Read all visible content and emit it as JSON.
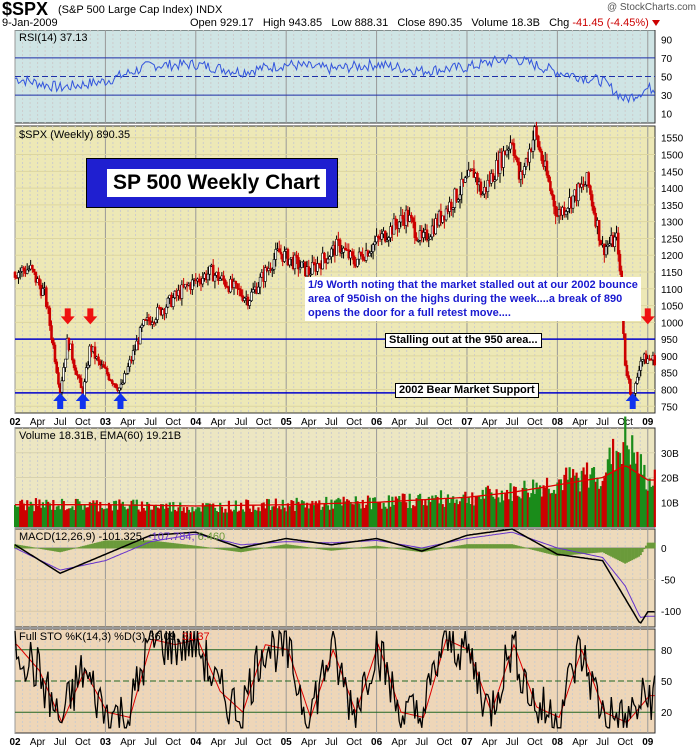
{
  "header": {
    "symbol": "$SPX",
    "name": "(S&P 500 Large Cap Index)",
    "exchange": "INDX",
    "watermark": "@ StockCharts.com",
    "date": "9-Jan-2009",
    "open_label": "Open",
    "open": "929.17",
    "high_label": "High",
    "high": "943.85",
    "low_label": "Low",
    "low": "888.31",
    "close_label": "Close",
    "close": "890.35",
    "volume_label": "Volume",
    "volume": "18.3B",
    "chg_label": "Chg",
    "chg": "-41.45 (-4.45%)"
  },
  "annotations": {
    "title_box": "SP 500 Weekly Chart",
    "note": "1/9  Worth noting that the market stalled out at our 2002 bounce area of 950ish on the highs during the week....a break of 890 opens the door for a full retest move....",
    "stall_label": "Stalling out at the 950 area...",
    "support_label": "2002 Bear Market Support"
  },
  "colors": {
    "rsi_bg": "#cfe4e4",
    "price_bg": "#ede8b6",
    "panel_bg": "#ece6c2",
    "macd_bg": "#eddabb",
    "sto_bg": "#eed6b8",
    "blue_line": "#0000cc",
    "up": "#1a8c1a",
    "down": "#cc0000",
    "arrow_red": "#ee1111",
    "arrow_blue": "#1133ee"
  },
  "chart_data": [
    {
      "type": "line",
      "panel": "rsi",
      "legend": "RSI(14) 37.13",
      "y_ticks": [
        10,
        30,
        50,
        70,
        90
      ],
      "ylim": [
        0,
        100
      ],
      "x_months": [
        "2002-01",
        "2002-07",
        "2003-01",
        "2003-07",
        "2004-01",
        "2004-07",
        "2005-01",
        "2005-07",
        "2006-01",
        "2006-07",
        "2007-01",
        "2007-07",
        "2008-01",
        "2008-07",
        "2008-10",
        "2009-01"
      ],
      "values": [
        48,
        38,
        45,
        62,
        63,
        55,
        63,
        58,
        63,
        56,
        60,
        70,
        55,
        45,
        25,
        37
      ]
    },
    {
      "type": "candlestick",
      "panel": "price",
      "legend": "$SPX (Weekly) 890.35",
      "y_ticks": [
        750,
        800,
        850,
        900,
        950,
        1000,
        1050,
        1100,
        1150,
        1200,
        1250,
        1300,
        1350,
        1400,
        1450,
        1500,
        1550
      ],
      "ylim": [
        730,
        1585
      ],
      "x_tick_labels": [
        "02",
        "Apr",
        "Jul",
        "Oct",
        "03",
        "Apr",
        "Jul",
        "Oct",
        "04",
        "Apr",
        "Jul",
        "Oct",
        "05",
        "Apr",
        "Jul",
        "Oct",
        "06",
        "Apr",
        "Jul",
        "Oct",
        "07",
        "Apr",
        "Jul",
        "Oct",
        "08",
        "Apr",
        "Jul",
        "Oct",
        "09"
      ],
      "horizontal_lines": [
        950,
        790
      ],
      "anchor_points": [
        [
          "2002-01",
          1150
        ],
        [
          "2002-03",
          1160
        ],
        [
          "2002-05",
          1080
        ],
        [
          "2002-07",
          800
        ],
        [
          "2002-08",
          950
        ],
        [
          "2002-10",
          780
        ],
        [
          "2002-11",
          930
        ],
        [
          "2002-12",
          880
        ],
        [
          "2003-03",
          800
        ],
        [
          "2003-06",
          990
        ],
        [
          "2003-12",
          1110
        ],
        [
          "2004-03",
          1150
        ],
        [
          "2004-08",
          1070
        ],
        [
          "2004-12",
          1210
        ],
        [
          "2005-04",
          1150
        ],
        [
          "2005-08",
          1230
        ],
        [
          "2005-10",
          1180
        ],
        [
          "2006-05",
          1320
        ],
        [
          "2006-07",
          1240
        ],
        [
          "2007-02",
          1450
        ],
        [
          "2007-03",
          1380
        ],
        [
          "2007-07",
          1550
        ],
        [
          "2007-08",
          1420
        ],
        [
          "2007-10",
          1565
        ],
        [
          "2008-01",
          1320
        ],
        [
          "2008-05",
          1420
        ],
        [
          "2008-07",
          1220
        ],
        [
          "2008-09",
          1250
        ],
        [
          "2008-10",
          880
        ],
        [
          "2008-11",
          760
        ],
        [
          "2008-12",
          890
        ],
        [
          "2009-01",
          890
        ]
      ],
      "arrows": [
        {
          "dir": "down",
          "color": "red",
          "date": "2002-08",
          "price": 1000
        },
        {
          "dir": "down",
          "color": "red",
          "date": "2002-11",
          "price": 1000
        },
        {
          "dir": "up",
          "color": "blue",
          "date": "2002-07",
          "price": 740
        },
        {
          "dir": "up",
          "color": "blue",
          "date": "2002-10",
          "price": 740
        },
        {
          "dir": "up",
          "color": "blue",
          "date": "2003-03",
          "price": 740
        },
        {
          "dir": "down",
          "color": "red",
          "date": "2009-01",
          "price": 1000
        },
        {
          "dir": "up",
          "color": "blue",
          "date": "2008-11",
          "price": 740
        }
      ]
    },
    {
      "type": "bar",
      "panel": "volume",
      "legend": "Volume 18.31B, EMA(60) 19.21B",
      "y_ticks": [
        "10B",
        "20B",
        "30B"
      ],
      "ylim": [
        0,
        40
      ],
      "x_months": [
        "2002-01",
        "2003-01",
        "2004-01",
        "2005-01",
        "2006-01",
        "2007-01",
        "2007-07",
        "2008-01",
        "2008-07",
        "2008-10",
        "2009-01"
      ],
      "values": [
        9,
        9,
        8,
        9,
        10,
        12,
        14,
        18,
        22,
        35,
        18
      ],
      "ema_values": [
        9,
        9,
        8.5,
        9,
        10,
        12,
        14,
        17,
        20,
        25,
        19
      ]
    },
    {
      "type": "line",
      "panel": "macd",
      "legend_main": "MACD(12,26,9) -101.325,",
      "legend_signal": "-107.784,",
      "legend_hist": "6.460",
      "y_ticks": [
        0,
        -50,
        -100
      ],
      "ylim": [
        -125,
        30
      ],
      "x_months": [
        "2002-01",
        "2002-07",
        "2003-01",
        "2003-07",
        "2004-01",
        "2004-07",
        "2005-01",
        "2005-07",
        "2006-01",
        "2006-07",
        "2007-01",
        "2007-07",
        "2008-01",
        "2008-07",
        "2008-10",
        "2008-12",
        "2009-01"
      ],
      "macd": [
        5,
        -40,
        -10,
        20,
        25,
        0,
        15,
        5,
        15,
        -5,
        20,
        30,
        -10,
        -20,
        -80,
        -120,
        -101
      ],
      "signal": [
        0,
        -35,
        -20,
        10,
        22,
        5,
        10,
        8,
        12,
        0,
        15,
        25,
        0,
        -15,
        -60,
        -110,
        -108
      ]
    },
    {
      "type": "line",
      "panel": "stochastic",
      "legend_main": "Full STO %K(14,3) %D(3) 36.09,",
      "legend_d": "31.37",
      "y_ticks": [
        20,
        50,
        80
      ],
      "ylim": [
        0,
        100
      ],
      "x_months": [
        "2002-01",
        "2002-04",
        "2002-07",
        "2002-10",
        "2003-01",
        "2003-04",
        "2003-07",
        "2003-10",
        "2004-01",
        "2004-04",
        "2004-07",
        "2004-10",
        "2005-01",
        "2005-04",
        "2005-07",
        "2005-10",
        "2006-01",
        "2006-04",
        "2006-07",
        "2006-10",
        "2007-01",
        "2007-04",
        "2007-07",
        "2007-10",
        "2008-01",
        "2008-04",
        "2008-07",
        "2008-10",
        "2009-01"
      ],
      "k": [
        85,
        60,
        10,
        60,
        20,
        15,
        90,
        85,
        90,
        40,
        20,
        85,
        80,
        15,
        80,
        20,
        85,
        20,
        15,
        90,
        80,
        20,
        85,
        25,
        15,
        80,
        20,
        10,
        36
      ]
    }
  ]
}
